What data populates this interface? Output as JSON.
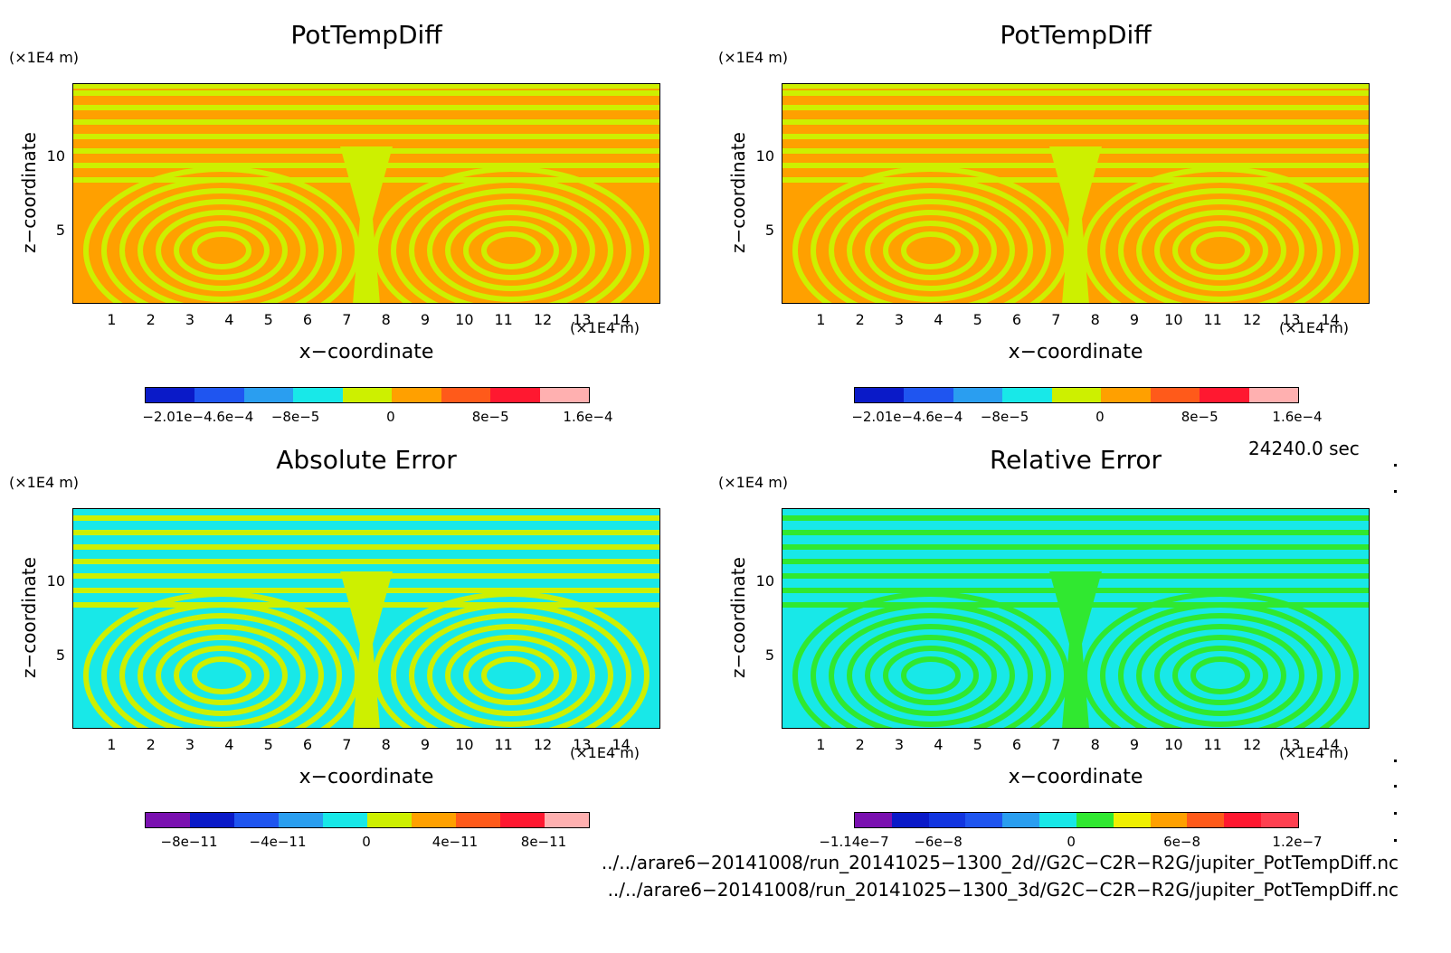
{
  "chart_data": [
    {
      "type": "heatmap",
      "title": "PotTempDiff",
      "xlabel": "x−coordinate",
      "ylabel": "z−coordinate",
      "x_unit": "(×1E4 m)",
      "y_unit": "(×1E4 m)",
      "x_ticks": [
        "1",
        "2",
        "3",
        "4",
        "5",
        "6",
        "7",
        "8",
        "9",
        "10",
        "11",
        "12",
        "13",
        "14"
      ],
      "y_ticks": [
        "5",
        "10"
      ],
      "xlim": [
        0,
        15
      ],
      "ylim": [
        0,
        15
      ],
      "colorbar": {
        "colors": [
          "#0a1ac8",
          "#1f55f0",
          "#2a9ef0",
          "#18e8e8",
          "#cdf000",
          "#ffa000",
          "#ff5a1a",
          "#ff1830",
          "#ffb0b0"
        ],
        "labels": [
          "−2.01e−4.6e−4",
          "−8e−5",
          "0",
          "8e−5",
          "1.6e−4"
        ],
        "label_positions": [
          0.12,
          0.34,
          0.555,
          0.78,
          1.0
        ]
      },
      "pattern": {
        "base": "#ffa000",
        "accent": "#cdf000",
        "top_band": true
      }
    },
    {
      "type": "heatmap",
      "title": "PotTempDiff",
      "xlabel": "x−coordinate",
      "ylabel": "z−coordinate",
      "x_unit": "(×1E4 m)",
      "y_unit": "(×1E4 m)",
      "x_ticks": [
        "1",
        "2",
        "3",
        "4",
        "5",
        "6",
        "7",
        "8",
        "9",
        "10",
        "11",
        "12",
        "13",
        "14"
      ],
      "y_ticks": [
        "5",
        "10"
      ],
      "xlim": [
        0,
        15
      ],
      "ylim": [
        0,
        15
      ],
      "colorbar": {
        "colors": [
          "#0a1ac8",
          "#1f55f0",
          "#2a9ef0",
          "#18e8e8",
          "#cdf000",
          "#ffa000",
          "#ff5a1a",
          "#ff1830",
          "#ffb0b0"
        ],
        "labels": [
          "−2.01e−4.6e−4",
          "−8e−5",
          "0",
          "8e−5",
          "1.6e−4"
        ],
        "label_positions": [
          0.12,
          0.34,
          0.555,
          0.78,
          1.0
        ]
      },
      "pattern": {
        "base": "#ffa000",
        "accent": "#cdf000",
        "top_band": true
      }
    },
    {
      "type": "heatmap",
      "title": "Absolute Error",
      "xlabel": "x−coordinate",
      "ylabel": "z−coordinate",
      "x_unit": "(×1E4 m)",
      "y_unit": "(×1E4 m)",
      "x_ticks": [
        "1",
        "2",
        "3",
        "4",
        "5",
        "6",
        "7",
        "8",
        "9",
        "10",
        "11",
        "12",
        "13",
        "14"
      ],
      "y_ticks": [
        "5",
        "10"
      ],
      "xlim": [
        0,
        15
      ],
      "ylim": [
        0,
        15
      ],
      "colorbar": {
        "colors": [
          "#7a10b0",
          "#0a1ac8",
          "#1f55f0",
          "#2a9ef0",
          "#18e8e8",
          "#cdf000",
          "#ffa000",
          "#ff5a1a",
          "#ff1830",
          "#ffb0b0"
        ],
        "labels": [
          "−8e−11",
          "−4e−11",
          "0",
          "4e−11",
          "8e−11"
        ],
        "label_positions": [
          0.1,
          0.3,
          0.5,
          0.7,
          0.9
        ]
      },
      "pattern": {
        "base": "#18e8e8",
        "accent": "#cdf000",
        "top_band": false
      }
    },
    {
      "type": "heatmap",
      "title": "Relative Error",
      "xlabel": "x−coordinate",
      "ylabel": "z−coordinate",
      "x_unit": "(×1E4 m)",
      "y_unit": "(×1E4 m)",
      "x_ticks": [
        "1",
        "2",
        "3",
        "4",
        "5",
        "6",
        "7",
        "8",
        "9",
        "10",
        "11",
        "12",
        "13",
        "14"
      ],
      "y_ticks": [
        "5",
        "10"
      ],
      "xlim": [
        0,
        15
      ],
      "ylim": [
        0,
        15
      ],
      "colorbar": {
        "colors": [
          "#7a10b0",
          "#0a1ac8",
          "#1235e0",
          "#1f55f0",
          "#2a9ef0",
          "#18e8e8",
          "#30e830",
          "#f0f000",
          "#ffa000",
          "#ff5a1a",
          "#ff1830",
          "#ff4050"
        ],
        "labels": [
          "−1.14e−7",
          "−6e−8",
          "0",
          "6e−8",
          "1.2e−7"
        ],
        "label_positions": [
          0.0,
          0.19,
          0.49,
          0.74,
          1.0
        ]
      },
      "pattern": {
        "base": "#18e8e8",
        "accent": "#30e830",
        "top_band": false
      }
    }
  ],
  "timestamp": "24240.0 sec",
  "file_paths": [
    "../../arare6−20141008/run_20141025−1300_2d//G2C−C2R−R2G/jupiter_PotTempDiff.nc",
    "../../arare6−20141008/run_20141025−1300_3d/G2C−C2R−R2G/jupiter_PotTempDiff.nc"
  ]
}
